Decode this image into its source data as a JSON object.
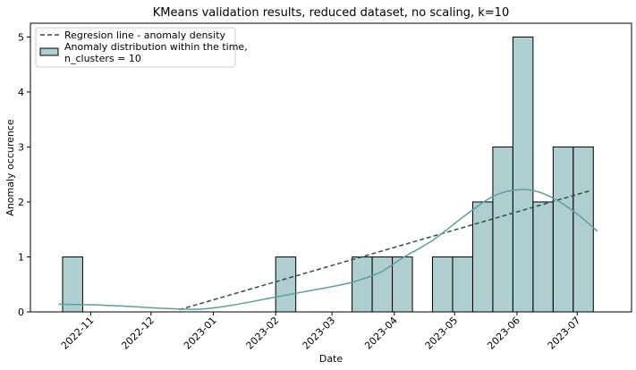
{
  "chart_data": {
    "type": "bar",
    "title": "KMeans validation results, reduced dataset, no scaling, k=10",
    "xlabel": "Date",
    "ylabel": "Anomaly occurence",
    "ylim": [
      0,
      5.25
    ],
    "y_ticks": [
      0,
      1,
      2,
      3,
      4,
      5
    ],
    "x_ticks": [
      "2022-11",
      "2022-12",
      "2023-01",
      "2023-02",
      "2023-03",
      "2023-04",
      "2023-05",
      "2023-06",
      "2023-07"
    ],
    "xlim": [
      "2022-10-02",
      "2023-07-28"
    ],
    "grid": false,
    "legend_position": "top-left",
    "bin_width_days": 10,
    "bins": [
      {
        "start": "2022-10-18",
        "count": 1
      },
      {
        "start": "2023-02-01",
        "count": 1
      },
      {
        "start": "2023-03-11",
        "count": 1
      },
      {
        "start": "2023-03-21",
        "count": 1
      },
      {
        "start": "2023-03-31",
        "count": 1
      },
      {
        "start": "2023-04-20",
        "count": 1
      },
      {
        "start": "2023-04-30",
        "count": 1
      },
      {
        "start": "2023-05-10",
        "count": 2
      },
      {
        "start": "2023-05-20",
        "count": 3
      },
      {
        "start": "2023-05-30",
        "count": 5
      },
      {
        "start": "2023-06-09",
        "count": 2
      },
      {
        "start": "2023-06-19",
        "count": 3
      },
      {
        "start": "2023-06-29",
        "count": 3
      }
    ],
    "series": [
      {
        "name": "Regresion line - anomaly density",
        "type": "line",
        "style": "dashed",
        "color": "#2f4f4f",
        "x": [
          "2022-12-15",
          "2023-07-07"
        ],
        "y": [
          0.04,
          2.2
        ]
      },
      {
        "name": "Anomaly distribution within the time,\nn_clusters = 10",
        "type": "histogram",
        "color": "#5f9ea0",
        "kde": {
          "x": [
            "2022-10-16",
            "2022-11-01",
            "2022-11-20",
            "2022-12-10",
            "2022-12-25",
            "2023-01-10",
            "2023-02-01",
            "2023-02-20",
            "2023-03-10",
            "2023-03-25",
            "2023-04-05",
            "2023-04-20",
            "2023-05-05",
            "2023-05-20",
            "2023-06-01",
            "2023-06-10",
            "2023-06-20",
            "2023-07-01",
            "2023-07-11"
          ],
          "y": [
            0.14,
            0.13,
            0.1,
            0.06,
            0.05,
            0.12,
            0.27,
            0.4,
            0.53,
            0.72,
            0.98,
            1.3,
            1.72,
            2.1,
            2.22,
            2.2,
            2.05,
            1.78,
            1.47
          ]
        }
      }
    ]
  }
}
